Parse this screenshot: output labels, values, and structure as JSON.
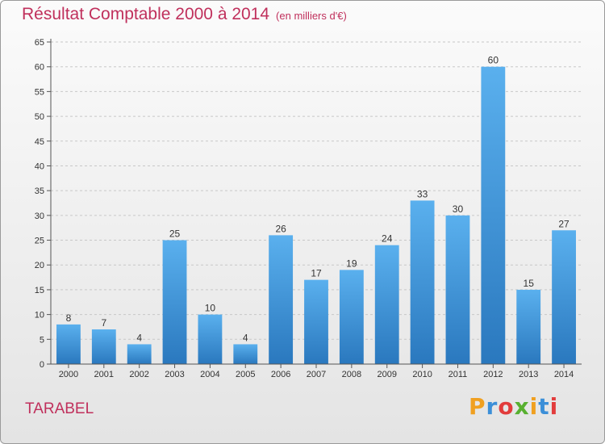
{
  "header": {
    "title": "Résultat Comptable 2000 à 2014",
    "subtitle": "(en milliers d'€)"
  },
  "footer": {
    "place": "TARABEL",
    "logo_letters": [
      "P",
      "r",
      "o",
      "x",
      "i",
      "t",
      "i"
    ],
    "logo_colors": [
      "#f0a020",
      "#3c8fd8",
      "#e23c3c",
      "#58b030",
      "#f0a020",
      "#3c8fd8",
      "#e23c3c"
    ]
  },
  "chart_data": {
    "type": "bar",
    "title": "Résultat Comptable 2000 à 2014",
    "subtitle": "(en milliers d'€)",
    "xlabel": "",
    "ylabel": "",
    "categories": [
      "2000",
      "2001",
      "2002",
      "2003",
      "2004",
      "2005",
      "2006",
      "2007",
      "2008",
      "2009",
      "2010",
      "2011",
      "2012",
      "2013",
      "2014"
    ],
    "values": [
      8,
      7,
      4,
      25,
      10,
      4,
      26,
      17,
      19,
      24,
      33,
      30,
      60,
      15,
      27
    ],
    "ylim": [
      0,
      65
    ],
    "yticks": [
      0,
      5,
      10,
      15,
      20,
      25,
      30,
      35,
      40,
      45,
      50,
      55,
      60,
      65
    ],
    "grid": true,
    "bar_color": "#3a8fd6"
  }
}
